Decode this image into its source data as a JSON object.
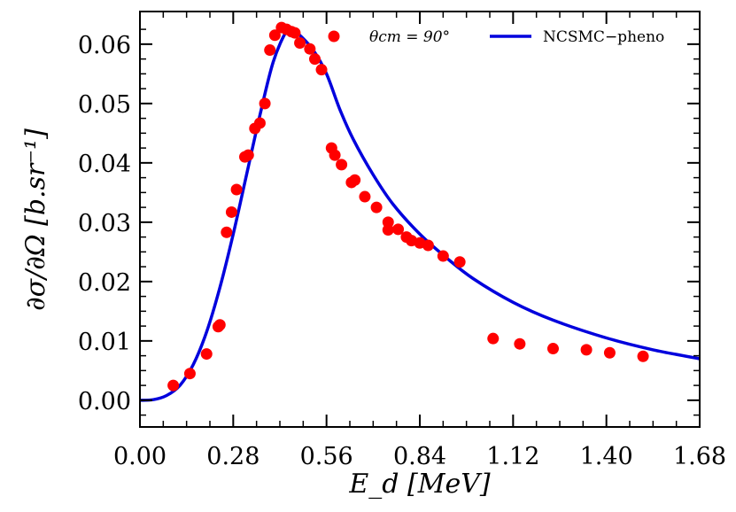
{
  "chart_data": {
    "type": "scatter",
    "xlabel": "E_d [MeV]",
    "ylabel": "∂σ/∂Ω [b.sr⁻¹]",
    "xlim": [
      0.0,
      1.68
    ],
    "ylim": [
      -0.0045,
      0.0655
    ],
    "xticks": [
      0.0,
      0.28,
      0.56,
      0.84,
      1.12,
      1.4,
      1.68
    ],
    "xtick_labels": [
      "0.00",
      "0.28",
      "0.56",
      "0.84",
      "1.12",
      "1.40",
      "1.68"
    ],
    "yticks": [
      0.0,
      0.01,
      0.02,
      0.03,
      0.04,
      0.05,
      0.06
    ],
    "ytick_labels": [
      "0.00",
      "0.01",
      "0.02",
      "0.03",
      "0.04",
      "0.05",
      "0.06"
    ],
    "grid": false,
    "legend_position": "top",
    "colors": {
      "data": "#ff0000",
      "curve": "#0000dd",
      "axis": "#000000"
    },
    "legend": {
      "data_label": "θcm = 90°",
      "curve_label": "NCSMC−pheno"
    },
    "series": [
      {
        "name": "θcm = 90°",
        "kind": "scatter",
        "xerr": 0.016,
        "points": [
          [
            0.1,
            0.0025
          ],
          [
            0.15,
            0.0045
          ],
          [
            0.2,
            0.0078
          ],
          [
            0.235,
            0.0124
          ],
          [
            0.24,
            0.0127
          ],
          [
            0.26,
            0.0283
          ],
          [
            0.275,
            0.0317
          ],
          [
            0.29,
            0.0355
          ],
          [
            0.315,
            0.041
          ],
          [
            0.325,
            0.0413
          ],
          [
            0.345,
            0.0458
          ],
          [
            0.36,
            0.0467
          ],
          [
            0.375,
            0.05
          ],
          [
            0.39,
            0.059
          ],
          [
            0.405,
            0.0615
          ],
          [
            0.425,
            0.0628
          ],
          [
            0.44,
            0.0625
          ],
          [
            0.455,
            0.0621
          ],
          [
            0.465,
            0.0619
          ],
          [
            0.48,
            0.0602
          ],
          [
            0.51,
            0.0592
          ],
          [
            0.525,
            0.0575
          ],
          [
            0.545,
            0.0557
          ],
          [
            0.575,
            0.0425
          ],
          [
            0.585,
            0.0413
          ],
          [
            0.605,
            0.0397
          ],
          [
            0.635,
            0.0367
          ],
          [
            0.645,
            0.0371
          ],
          [
            0.675,
            0.0343
          ],
          [
            0.71,
            0.0325
          ],
          [
            0.745,
            0.03
          ],
          [
            0.745,
            0.0287
          ],
          [
            0.775,
            0.0288
          ],
          [
            0.8,
            0.0275
          ],
          [
            0.815,
            0.0269
          ],
          [
            0.84,
            0.0265
          ],
          [
            0.865,
            0.0261
          ],
          [
            0.91,
            0.0243
          ],
          [
            0.96,
            0.0233
          ],
          [
            1.06,
            0.0104
          ],
          [
            1.14,
            0.0095
          ],
          [
            1.24,
            0.0087
          ],
          [
            1.34,
            0.0085
          ],
          [
            1.41,
            0.008
          ],
          [
            1.51,
            0.0074
          ]
        ]
      },
      {
        "name": "NCSMC−pheno",
        "kind": "line",
        "points": [
          [
            0.0,
            0.0
          ],
          [
            0.04,
            0.0001
          ],
          [
            0.08,
            0.0008
          ],
          [
            0.12,
            0.0025
          ],
          [
            0.16,
            0.006
          ],
          [
            0.2,
            0.0115
          ],
          [
            0.24,
            0.019
          ],
          [
            0.28,
            0.028
          ],
          [
            0.32,
            0.038
          ],
          [
            0.36,
            0.048
          ],
          [
            0.4,
            0.057
          ],
          [
            0.44,
            0.0622
          ],
          [
            0.46,
            0.0624
          ],
          [
            0.48,
            0.0615
          ],
          [
            0.52,
            0.059
          ],
          [
            0.56,
            0.055
          ],
          [
            0.6,
            0.049
          ],
          [
            0.64,
            0.044
          ],
          [
            0.7,
            0.038
          ],
          [
            0.76,
            0.033
          ],
          [
            0.84,
            0.028
          ],
          [
            0.92,
            0.024
          ],
          [
            1.0,
            0.0205
          ],
          [
            1.12,
            0.0165
          ],
          [
            1.24,
            0.0135
          ],
          [
            1.4,
            0.0105
          ],
          [
            1.54,
            0.0085
          ],
          [
            1.68,
            0.007
          ]
        ]
      }
    ]
  }
}
